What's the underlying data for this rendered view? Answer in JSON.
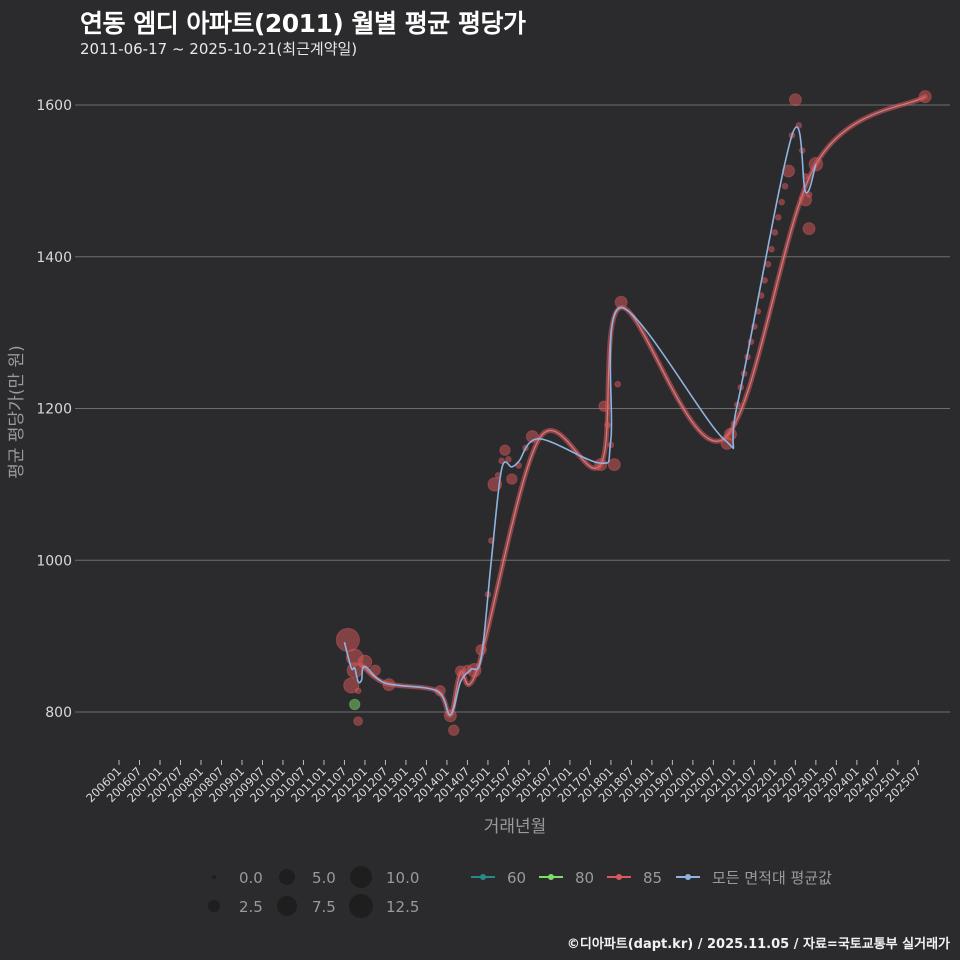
{
  "header": {
    "title": "연동 엠디 아파트(2011) 월별 평균 평당가",
    "subtitle": "2011-06-17 ~ 2025-10-21(최근계약일)"
  },
  "caption": "©디아파트(dapt.kr) / 2025.11.05 / 자료=국토교통부 실거래가",
  "colors": {
    "background": "#2b2b2d",
    "grid": "#6e6e6e",
    "s60": "#2a8a8a",
    "s80": "#7ddc6a",
    "s85": "#d9595c",
    "all": "#8fb3e0"
  },
  "chart_data": {
    "type": "scatter",
    "title": "연동 엠디 아파트(2011) 월별 평균 평당가",
    "subtitle": "2011-06-17 ~ 2025-10-21(최근계약일)",
    "xlabel": "거래년월",
    "ylabel": "평균 평당가(만 원)",
    "ylim": [
      740,
      1650
    ],
    "yticks": [
      800,
      1000,
      1200,
      1400,
      1600
    ],
    "xticks": [
      "200601",
      "200607",
      "200701",
      "200707",
      "200801",
      "200807",
      "200901",
      "200907",
      "201001",
      "201007",
      "201101",
      "201107",
      "201201",
      "201207",
      "201301",
      "201307",
      "201401",
      "201407",
      "201501",
      "201507",
      "201601",
      "201607",
      "201701",
      "201707",
      "201801",
      "201807",
      "201901",
      "201907",
      "202001",
      "202007",
      "202101",
      "202107",
      "202201",
      "202207",
      "202301",
      "202307",
      "202401",
      "202407",
      "202501",
      "202507"
    ],
    "grid": true,
    "legend_position": "bottom",
    "size_legend": {
      "title": "",
      "values": [
        "0.0",
        "2.5",
        "5.0",
        "7.5",
        "10.0",
        "12.5"
      ]
    },
    "color_legend": [
      {
        "label": "60",
        "color": "#2a8a8a"
      },
      {
        "label": "80",
        "color": "#7ddc6a"
      },
      {
        "label": "85",
        "color": "#d9595c"
      },
      {
        "label": "모든 면적대 평균값",
        "color": "#8fb3e0"
      }
    ],
    "series": [
      {
        "name": "80",
        "points": [
          {
            "x": "201110",
            "y": 810,
            "size": 4
          }
        ]
      },
      {
        "name": "85",
        "points": [
          {
            "x": "201108",
            "y": 895,
            "size": 12
          },
          {
            "x": "201110",
            "y": 872,
            "size": 8
          },
          {
            "x": "201110",
            "y": 855,
            "size": 7
          },
          {
            "x": "201109",
            "y": 835,
            "size": 7
          },
          {
            "x": "201111",
            "y": 788,
            "size": 3
          },
          {
            "x": "201111",
            "y": 828,
            "size": 1
          },
          {
            "x": "201201",
            "y": 866,
            "size": 6
          },
          {
            "x": "201204",
            "y": 855,
            "size": 4
          },
          {
            "x": "201208",
            "y": 836,
            "size": 5
          },
          {
            "x": "201311",
            "y": 828,
            "size": 4
          },
          {
            "x": "201402",
            "y": 795,
            "size": 5
          },
          {
            "x": "201403",
            "y": 776,
            "size": 4
          },
          {
            "x": "201405",
            "y": 854,
            "size": 4
          },
          {
            "x": "201407",
            "y": 856,
            "size": 3
          },
          {
            "x": "201409",
            "y": 855,
            "size": 6
          },
          {
            "x": "201411",
            "y": 882,
            "size": 4
          },
          {
            "x": "201501",
            "y": 955,
            "size": 1
          },
          {
            "x": "201502",
            "y": 1026,
            "size": 1
          },
          {
            "x": "201503",
            "y": 1100,
            "size": 6
          },
          {
            "x": "201504",
            "y": 1112,
            "size": 1
          },
          {
            "x": "201505",
            "y": 1131,
            "size": 1
          },
          {
            "x": "201506",
            "y": 1145,
            "size": 4
          },
          {
            "x": "201507",
            "y": 1133,
            "size": 1
          },
          {
            "x": "201508",
            "y": 1107,
            "size": 4
          },
          {
            "x": "201510",
            "y": 1125,
            "size": 1
          },
          {
            "x": "201512",
            "y": 1148,
            "size": 1
          },
          {
            "x": "201602",
            "y": 1163,
            "size": 5
          },
          {
            "x": "201710",
            "y": 1126,
            "size": 5
          },
          {
            "x": "201711",
            "y": 1203,
            "size": 4
          },
          {
            "x": "201712",
            "y": 1178,
            "size": 1
          },
          {
            "x": "201801",
            "y": 1152,
            "size": 1
          },
          {
            "x": "201802",
            "y": 1126,
            "size": 5
          },
          {
            "x": "201803",
            "y": 1232,
            "size": 1
          },
          {
            "x": "201804",
            "y": 1340,
            "size": 5
          },
          {
            "x": "202011",
            "y": 1154,
            "size": 5
          },
          {
            "x": "202012",
            "y": 1166,
            "size": 5
          },
          {
            "x": "202101",
            "y": 1180,
            "size": 1
          },
          {
            "x": "202102",
            "y": 1205,
            "size": 1
          },
          {
            "x": "202103",
            "y": 1228,
            "size": 1
          },
          {
            "x": "202104",
            "y": 1246,
            "size": 1
          },
          {
            "x": "202105",
            "y": 1268,
            "size": 1
          },
          {
            "x": "202106",
            "y": 1288,
            "size": 1
          },
          {
            "x": "202107",
            "y": 1308,
            "size": 1
          },
          {
            "x": "202108",
            "y": 1328,
            "size": 1
          },
          {
            "x": "202109",
            "y": 1349,
            "size": 1
          },
          {
            "x": "202110",
            "y": 1369,
            "size": 1
          },
          {
            "x": "202111",
            "y": 1390,
            "size": 1
          },
          {
            "x": "202112",
            "y": 1410,
            "size": 1
          },
          {
            "x": "202201",
            "y": 1432,
            "size": 1
          },
          {
            "x": "202202",
            "y": 1452,
            "size": 1
          },
          {
            "x": "202203",
            "y": 1472,
            "size": 1
          },
          {
            "x": "202204",
            "y": 1493,
            "size": 1
          },
          {
            "x": "202205",
            "y": 1513,
            "size": 5
          },
          {
            "x": "202206",
            "y": 1560,
            "size": 1
          },
          {
            "x": "202207",
            "y": 1607,
            "size": 5
          },
          {
            "x": "202208",
            "y": 1573,
            "size": 1
          },
          {
            "x": "202209",
            "y": 1540,
            "size": 1
          },
          {
            "x": "202210",
            "y": 1506,
            "size": 1
          },
          {
            "x": "202210",
            "y": 1475,
            "size": 5
          },
          {
            "x": "202211",
            "y": 1437,
            "size": 5
          },
          {
            "x": "202211",
            "y": 1482,
            "size": 1
          },
          {
            "x": "202301",
            "y": 1522,
            "size": 6
          },
          {
            "x": "202509",
            "y": 1611,
            "size": 5
          }
        ],
        "line": [
          {
            "x": "201112",
            "y": 862
          },
          {
            "x": "201207",
            "y": 838
          },
          {
            "x": "201310",
            "y": 828
          },
          {
            "x": "201402",
            "y": 796
          },
          {
            "x": "201405",
            "y": 852
          },
          {
            "x": "201410",
            "y": 858
          },
          {
            "x": "201604",
            "y": 1160
          },
          {
            "x": "201710",
            "y": 1126
          },
          {
            "x": "201804",
            "y": 1333
          },
          {
            "x": "202010",
            "y": 1160
          },
          {
            "x": "202301",
            "y": 1522
          },
          {
            "x": "202509",
            "y": 1611
          }
        ]
      },
      {
        "name": "모든 면적대 평균값",
        "line": [
          {
            "x": "201107",
            "y": 892
          },
          {
            "x": "201109",
            "y": 858
          },
          {
            "x": "201110",
            "y": 858
          },
          {
            "x": "201111",
            "y": 840
          },
          {
            "x": "201112",
            "y": 842
          },
          {
            "x": "201201",
            "y": 860
          },
          {
            "x": "201207",
            "y": 838
          },
          {
            "x": "201310",
            "y": 828
          },
          {
            "x": "201402",
            "y": 796
          },
          {
            "x": "201405",
            "y": 840
          },
          {
            "x": "201408",
            "y": 856
          },
          {
            "x": "201411",
            "y": 870
          },
          {
            "x": "201502",
            "y": 1000
          },
          {
            "x": "201505",
            "y": 1120
          },
          {
            "x": "201508",
            "y": 1123
          },
          {
            "x": "201510",
            "y": 1130
          },
          {
            "x": "201604",
            "y": 1160
          },
          {
            "x": "201710",
            "y": 1128
          },
          {
            "x": "201801",
            "y": 1160
          },
          {
            "x": "201804",
            "y": 1333
          },
          {
            "x": "202010",
            "y": 1160
          },
          {
            "x": "202102",
            "y": 1205
          },
          {
            "x": "202206",
            "y": 1560
          },
          {
            "x": "202210",
            "y": 1485
          },
          {
            "x": "202301",
            "y": 1522
          }
        ]
      }
    ]
  },
  "legend": {
    "sizes": [
      "0.0",
      "2.5",
      "5.0",
      "7.5",
      "10.0",
      "12.5"
    ],
    "series": [
      "60",
      "80",
      "85",
      "모든 면적대 평균값"
    ]
  }
}
